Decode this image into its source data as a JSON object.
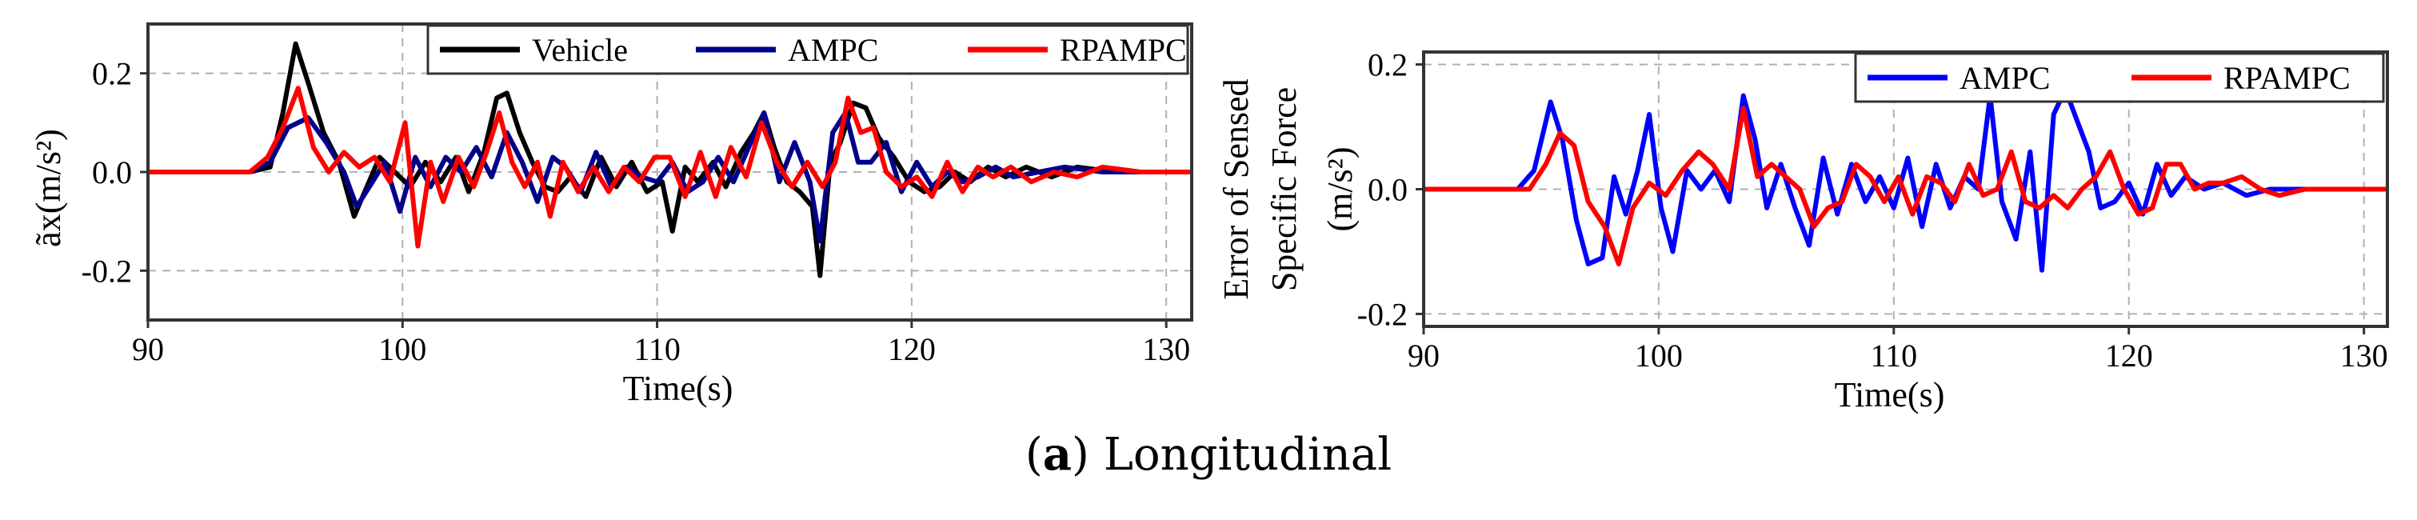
{
  "caption": {
    "label": "a",
    "text": "Longitudinal"
  },
  "chart_data": [
    {
      "type": "line",
      "title": "",
      "xlabel": "Time(s)",
      "ylabel": "ãx(m/s²)",
      "xlim": [
        90,
        131
      ],
      "ylim": [
        -0.3,
        0.3
      ],
      "xticks": [
        90,
        100,
        110,
        120,
        130
      ],
      "yticks": [
        0.2,
        0.0,
        -0.2
      ],
      "xtick_labels": [
        "90",
        "100",
        "110",
        "120",
        "130"
      ],
      "ytick_labels": [
        "0.2",
        "0.0",
        "-0.2"
      ],
      "grid": true,
      "legend": "top-right",
      "series": [
        {
          "name": "Vehicle",
          "color": "#000000",
          "x": [
            90,
            94,
            94.8,
            95.3,
            95.8,
            96.3,
            96.9,
            97.5,
            98.1,
            98.6,
            99.1,
            99.7,
            100.3,
            100.9,
            101.5,
            102.1,
            102.6,
            103.2,
            103.7,
            104.1,
            104.6,
            105.1,
            105.6,
            106.1,
            106.6,
            107.2,
            107.8,
            108.4,
            109,
            109.6,
            110.2,
            110.6,
            111.1,
            111.6,
            112.2,
            112.7,
            113.3,
            113.8,
            114.2,
            114.6,
            115.1,
            115.6,
            116.1,
            116.4,
            116.8,
            117.2,
            117.7,
            118.2,
            118.7,
            119.3,
            119.9,
            120.5,
            121.1,
            121.7,
            122.3,
            123,
            123.7,
            124.5,
            125.5,
            126.5,
            128,
            129.5,
            131
          ],
          "y": [
            0,
            0,
            0.01,
            0.12,
            0.26,
            0.18,
            0.08,
            0.02,
            -0.09,
            -0.03,
            0.03,
            0,
            -0.03,
            0.02,
            -0.02,
            0.03,
            -0.04,
            0.04,
            0.15,
            0.16,
            0.08,
            0.02,
            -0.03,
            -0.04,
            -0.01,
            -0.05,
            0.03,
            -0.03,
            0.02,
            -0.04,
            -0.02,
            -0.12,
            0.01,
            -0.02,
            0.02,
            -0.03,
            0.04,
            0.08,
            0.12,
            0.05,
            -0.02,
            -0.04,
            -0.07,
            -0.21,
            0.02,
            0.06,
            0.14,
            0.13,
            0.07,
            0.03,
            -0.02,
            -0.04,
            -0.03,
            0,
            -0.02,
            0.01,
            -0.01,
            0.01,
            -0.01,
            0.01,
            0,
            0,
            0
          ]
        },
        {
          "name": "AMPC",
          "color": "#00008b",
          "x": [
            90,
            94,
            94.8,
            95.5,
            96.3,
            97,
            97.7,
            98.2,
            98.7,
            99.3,
            99.9,
            100.5,
            101.1,
            101.7,
            102.3,
            102.9,
            103.5,
            104.1,
            104.7,
            105.3,
            105.9,
            106.4,
            107,
            107.6,
            108.2,
            108.8,
            109.4,
            110,
            110.6,
            111.2,
            111.8,
            112.4,
            113,
            113.6,
            114.2,
            114.8,
            115.4,
            116,
            116.4,
            116.9,
            117.4,
            117.9,
            118.4,
            119,
            119.6,
            120.2,
            120.8,
            121.4,
            122,
            122.6,
            123.3,
            124,
            125,
            126,
            127.5,
            129,
            131
          ],
          "y": [
            0,
            0,
            0.02,
            0.09,
            0.11,
            0.06,
            0,
            -0.07,
            -0.03,
            0.02,
            -0.08,
            0.03,
            -0.03,
            0.03,
            0,
            0.05,
            -0.01,
            0.08,
            0.02,
            -0.06,
            0.03,
            0.01,
            -0.04,
            0.04,
            -0.03,
            0.01,
            -0.01,
            -0.02,
            0.02,
            -0.04,
            -0.02,
            0.03,
            -0.02,
            0.05,
            0.12,
            -0.02,
            0.06,
            -0.02,
            -0.14,
            0.08,
            0.12,
            0.02,
            0.02,
            0.06,
            -0.04,
            0.02,
            -0.03,
            0,
            -0.02,
            -0.01,
            0.01,
            -0.01,
            0,
            0.01,
            0,
            0,
            0
          ]
        },
        {
          "name": "RPAMPC",
          "color": "#ff0000",
          "x": [
            90,
            94,
            94.7,
            95.3,
            95.9,
            96.5,
            97.1,
            97.7,
            98.3,
            98.9,
            99.5,
            100.1,
            100.6,
            101.1,
            101.6,
            102.2,
            102.8,
            103.3,
            103.8,
            104.3,
            104.8,
            105.3,
            105.8,
            106.3,
            106.9,
            107.5,
            108.1,
            108.7,
            109.3,
            109.9,
            110.5,
            111.1,
            111.7,
            112.3,
            112.9,
            113.5,
            114.1,
            114.7,
            115.3,
            115.9,
            116.5,
            117,
            117.5,
            118,
            118.5,
            119,
            119.6,
            120.2,
            120.8,
            121.4,
            122,
            122.6,
            123.2,
            123.9,
            124.7,
            125.6,
            126.5,
            127.5,
            129,
            131
          ],
          "y": [
            0,
            0,
            0.03,
            0.09,
            0.17,
            0.05,
            0,
            0.04,
            0.01,
            0.03,
            -0.02,
            0.1,
            -0.15,
            0.02,
            -0.06,
            0.03,
            -0.03,
            0.04,
            0.12,
            0.02,
            -0.03,
            0.02,
            -0.09,
            0.02,
            -0.04,
            0.01,
            -0.04,
            0.01,
            -0.02,
            0.03,
            0.03,
            -0.05,
            0.04,
            -0.05,
            0.05,
            -0.01,
            0.1,
            0.02,
            -0.03,
            0.02,
            -0.03,
            0.02,
            0.15,
            0.08,
            0.09,
            0,
            -0.03,
            -0.01,
            -0.05,
            0.02,
            -0.04,
            0.01,
            -0.01,
            0.01,
            -0.02,
            0,
            -0.01,
            0.01,
            0,
            0
          ]
        }
      ]
    },
    {
      "type": "line",
      "title": "",
      "xlabel": "Time(s)",
      "ylabel_line1": "Error of Sensed",
      "ylabel_line2": "Specific Force",
      "ylabel_line3": "(m/s²)",
      "xlim": [
        90,
        131
      ],
      "ylim": [
        -0.22,
        0.22
      ],
      "xticks": [
        90,
        100,
        110,
        120,
        130
      ],
      "yticks": [
        0.2,
        0.0,
        -0.2
      ],
      "xtick_labels": [
        "90",
        "100",
        "110",
        "120",
        "130"
      ],
      "ytick_labels": [
        "0.2",
        "0.0",
        "-0.2"
      ],
      "grid": true,
      "legend": "top-right",
      "series": [
        {
          "name": "AMPC",
          "color": "#0000ff",
          "x": [
            90,
            94,
            94.7,
            95.4,
            95.9,
            96.5,
            97,
            97.6,
            98.1,
            98.6,
            99.1,
            99.6,
            100.1,
            100.6,
            101.2,
            101.8,
            102.4,
            103,
            103.6,
            104.1,
            104.6,
            105.2,
            105.8,
            106.4,
            107,
            107.6,
            108.2,
            108.8,
            109.4,
            110,
            110.6,
            111.2,
            111.8,
            112.4,
            113,
            113.6,
            114.1,
            114.6,
            115.2,
            115.8,
            116.3,
            116.8,
            117.3,
            117.8,
            118.3,
            118.8,
            119.4,
            120,
            120.6,
            121.2,
            121.8,
            122.4,
            123.2,
            124,
            125,
            126,
            127.5,
            129,
            131
          ],
          "y": [
            0,
            0,
            0.03,
            0.14,
            0.08,
            -0.05,
            -0.12,
            -0.11,
            0.02,
            -0.04,
            0.03,
            0.12,
            -0.03,
            -0.1,
            0.03,
            0,
            0.03,
            -0.02,
            0.15,
            0.08,
            -0.03,
            0.04,
            -0.03,
            -0.09,
            0.05,
            -0.04,
            0.04,
            -0.02,
            0.02,
            -0.03,
            0.05,
            -0.06,
            0.04,
            -0.03,
            0.02,
            0,
            0.15,
            -0.02,
            -0.08,
            0.06,
            -0.13,
            0.12,
            0.16,
            0.11,
            0.06,
            -0.03,
            -0.02,
            0.01,
            -0.04,
            0.04,
            -0.01,
            0.02,
            0,
            0.01,
            -0.01,
            0,
            0,
            0,
            0
          ]
        },
        {
          "name": "RPAMPC",
          "color": "#ff0000",
          "x": [
            90,
            94.5,
            95.2,
            95.8,
            96.4,
            97,
            97.7,
            98.3,
            98.9,
            99.6,
            100.3,
            101,
            101.7,
            102.3,
            103,
            103.6,
            104.2,
            104.8,
            105.4,
            106,
            106.6,
            107.2,
            107.8,
            108.4,
            109,
            109.6,
            110.2,
            110.8,
            111.4,
            112,
            112.6,
            113.2,
            113.8,
            114.4,
            115,
            115.6,
            116.2,
            116.8,
            117.4,
            118,
            118.6,
            119.2,
            119.8,
            120.4,
            121,
            121.6,
            122.2,
            122.8,
            123.4,
            124,
            124.8,
            125.6,
            126.4,
            127.5,
            129,
            131
          ],
          "y": [
            0,
            0,
            0.04,
            0.09,
            0.07,
            -0.02,
            -0.06,
            -0.12,
            -0.03,
            0.01,
            -0.01,
            0.03,
            0.06,
            0.04,
            0,
            0.13,
            0.02,
            0.04,
            0.02,
            0,
            -0.06,
            -0.03,
            -0.02,
            0.04,
            0.02,
            -0.02,
            0.02,
            -0.04,
            0.02,
            0.01,
            -0.02,
            0.04,
            -0.01,
            0,
            0.06,
            -0.02,
            -0.03,
            -0.01,
            -0.03,
            0,
            0.02,
            0.06,
            0,
            -0.04,
            -0.03,
            0.04,
            0.04,
            0,
            0.01,
            0.01,
            0.02,
            0,
            -0.01,
            0,
            0,
            0
          ]
        }
      ]
    }
  ]
}
